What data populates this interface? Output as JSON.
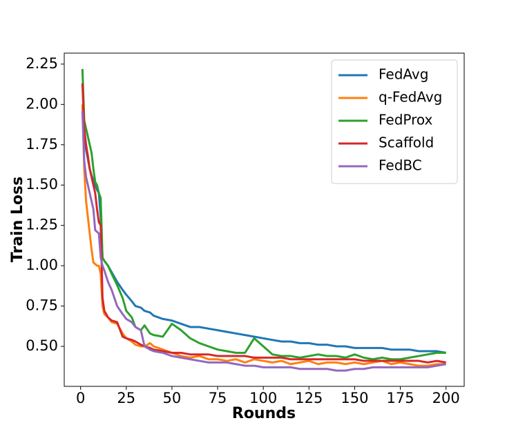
{
  "chart_data": {
    "type": "line",
    "xlabel": "Rounds",
    "ylabel": "Train Loss",
    "x": [
      1,
      2,
      3,
      4,
      5,
      6,
      7,
      8,
      9,
      10,
      11,
      12,
      13,
      15,
      17,
      20,
      23,
      25,
      28,
      30,
      33,
      35,
      38,
      40,
      45,
      50,
      55,
      60,
      65,
      70,
      75,
      80,
      85,
      90,
      95,
      100,
      105,
      110,
      115,
      120,
      125,
      130,
      135,
      140,
      145,
      150,
      155,
      160,
      165,
      170,
      175,
      180,
      185,
      190,
      195,
      200
    ],
    "series": [
      {
        "name": "FedAvg",
        "color": "#1f77b4",
        "values": [
          1.95,
          1.8,
          1.72,
          1.66,
          1.6,
          1.56,
          1.53,
          1.5,
          1.47,
          1.45,
          1.3,
          1.05,
          1.03,
          1.0,
          0.96,
          0.9,
          0.85,
          0.82,
          0.78,
          0.75,
          0.74,
          0.72,
          0.71,
          0.69,
          0.67,
          0.66,
          0.64,
          0.62,
          0.62,
          0.61,
          0.6,
          0.59,
          0.58,
          0.57,
          0.56,
          0.55,
          0.54,
          0.53,
          0.53,
          0.52,
          0.52,
          0.51,
          0.51,
          0.5,
          0.5,
          0.49,
          0.49,
          0.49,
          0.49,
          0.48,
          0.48,
          0.48,
          0.47,
          0.47,
          0.47,
          0.46
        ]
      },
      {
        "name": "q-FedAvg",
        "color": "#ff7f0e",
        "values": [
          2.0,
          1.6,
          1.4,
          1.3,
          1.2,
          1.1,
          1.02,
          1.01,
          1.0,
          1.0,
          0.95,
          0.75,
          0.7,
          0.68,
          0.65,
          0.64,
          0.58,
          0.55,
          0.53,
          0.51,
          0.5,
          0.5,
          0.52,
          0.5,
          0.48,
          0.46,
          0.44,
          0.43,
          0.44,
          0.42,
          0.42,
          0.41,
          0.42,
          0.4,
          0.42,
          0.41,
          0.4,
          0.41,
          0.39,
          0.4,
          0.41,
          0.39,
          0.4,
          0.4,
          0.39,
          0.4,
          0.39,
          0.4,
          0.41,
          0.39,
          0.4,
          0.39,
          0.38,
          0.38,
          0.39,
          0.39
        ]
      },
      {
        "name": "FedProx",
        "color": "#2ca02c",
        "values": [
          2.22,
          1.9,
          1.85,
          1.8,
          1.75,
          1.7,
          1.6,
          1.52,
          1.5,
          1.45,
          1.42,
          1.05,
          1.03,
          1.0,
          0.95,
          0.88,
          0.8,
          0.72,
          0.68,
          0.62,
          0.6,
          0.63,
          0.58,
          0.57,
          0.56,
          0.64,
          0.6,
          0.55,
          0.52,
          0.5,
          0.48,
          0.47,
          0.46,
          0.46,
          0.55,
          0.5,
          0.45,
          0.44,
          0.44,
          0.43,
          0.44,
          0.45,
          0.44,
          0.44,
          0.43,
          0.45,
          0.43,
          0.42,
          0.43,
          0.42,
          0.42,
          0.43,
          0.44,
          0.45,
          0.46,
          0.46
        ]
      },
      {
        "name": "Scaffold",
        "color": "#d62728",
        "values": [
          2.13,
          1.85,
          1.75,
          1.68,
          1.6,
          1.55,
          1.5,
          1.45,
          1.35,
          1.27,
          1.25,
          0.8,
          0.72,
          0.68,
          0.66,
          0.65,
          0.56,
          0.55,
          0.54,
          0.53,
          0.51,
          0.5,
          0.49,
          0.48,
          0.47,
          0.46,
          0.46,
          0.45,
          0.45,
          0.45,
          0.44,
          0.44,
          0.44,
          0.44,
          0.43,
          0.43,
          0.43,
          0.43,
          0.42,
          0.42,
          0.42,
          0.42,
          0.42,
          0.42,
          0.42,
          0.42,
          0.41,
          0.41,
          0.41,
          0.41,
          0.41,
          0.41,
          0.41,
          0.4,
          0.41,
          0.4
        ]
      },
      {
        "name": "FedBC",
        "color": "#9467bd",
        "values": [
          1.96,
          1.65,
          1.55,
          1.5,
          1.45,
          1.4,
          1.35,
          1.22,
          1.21,
          1.2,
          1.05,
          1.0,
          0.97,
          0.9,
          0.85,
          0.75,
          0.7,
          0.67,
          0.65,
          0.62,
          0.6,
          0.5,
          0.48,
          0.47,
          0.46,
          0.44,
          0.43,
          0.42,
          0.41,
          0.4,
          0.4,
          0.4,
          0.39,
          0.38,
          0.38,
          0.37,
          0.37,
          0.37,
          0.37,
          0.36,
          0.36,
          0.36,
          0.36,
          0.35,
          0.35,
          0.36,
          0.36,
          0.37,
          0.37,
          0.37,
          0.37,
          0.37,
          0.37,
          0.37,
          0.38,
          0.39
        ]
      }
    ],
    "xlim": [
      -8.95,
      209.95
    ],
    "xticks": [
      0,
      25,
      50,
      75,
      100,
      125,
      150,
      175,
      200
    ],
    "ylim": [
      0.252,
      2.318
    ],
    "yticks": [
      {
        "value": 0.5,
        "label": "0.50"
      },
      {
        "value": 0.75,
        "label": "0.75"
      },
      {
        "value": 1.0,
        "label": "1.00"
      },
      {
        "value": 1.25,
        "label": "1.25"
      },
      {
        "value": 1.5,
        "label": "1.50"
      },
      {
        "value": 1.75,
        "label": "1.75"
      },
      {
        "value": 2.0,
        "label": "2.00"
      },
      {
        "value": 2.25,
        "label": "2.25"
      }
    ],
    "legend": "upper right",
    "grid": false
  }
}
